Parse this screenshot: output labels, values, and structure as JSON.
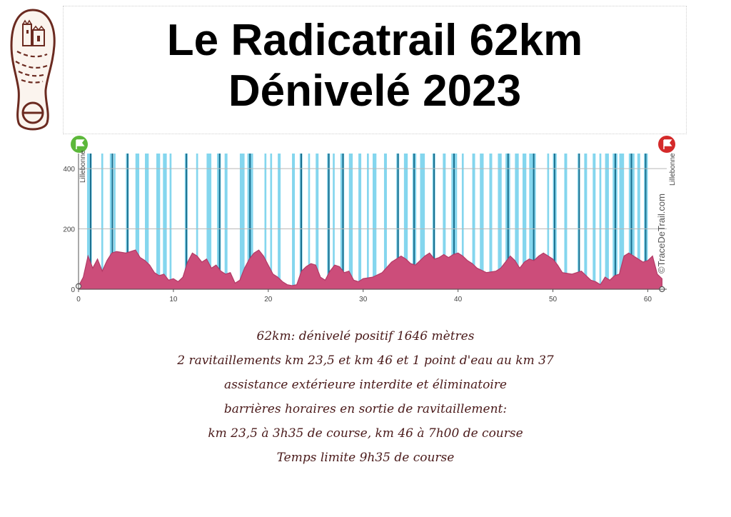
{
  "title": {
    "line1": "Le Radicatrail 62km",
    "line2": "Dénivelé 2023"
  },
  "info_lines": [
    "62km: dénivelé positif 1646 mètres",
    "2 ravitaillements km 23,5 et km 46 et 1 point d'eau au km 37",
    "assistance extérieure interdite et éliminatoire",
    "barrières horaires en sortie de ravitaillement:",
    "km 23,5 à 3h35 de course, km 46 à 7h00 de course",
    "Temps limite 9h35 de course"
  ],
  "colors": {
    "profile_fill": "#cc4d7a",
    "profile_stroke": "#b23a66",
    "forest_band": "#5bc8e8",
    "forest_band_dark": "#1b6f8e",
    "start_flag": "#5cb83a",
    "end_flag": "#d42a2a",
    "info_text": "#4a1a1a",
    "logo": "#6b2a20"
  },
  "icons": {
    "logo": "shoe-print-castle-logo-icon",
    "start": "green-start-flag-icon",
    "end": "red-finish-flag-icon"
  },
  "chart_data": {
    "type": "area",
    "xlabel": "",
    "ylabel": "",
    "xlim": [
      0,
      62
    ],
    "ylim": [
      0,
      450
    ],
    "x_ticks": [
      0,
      10,
      20,
      30,
      40,
      50,
      60
    ],
    "y_ticks": [
      0,
      200,
      400
    ],
    "grid": true,
    "start_label": "Lillebonne",
    "end_label": "Lillebonne",
    "watermark": "©TraceDeTrail.com",
    "series": [
      {
        "x": [
          0,
          0.5,
          1,
          1.5,
          2,
          2.5,
          3,
          3.5,
          4,
          5,
          6,
          6.5,
          7,
          7.5,
          8,
          8.5,
          9,
          9.5,
          10,
          10.5,
          11,
          11.5,
          12,
          12.5,
          13,
          13.5,
          14,
          14.5,
          15,
          15.5,
          16,
          16.5,
          17,
          17.5,
          18,
          18.5,
          19,
          19.5,
          20,
          20.5,
          21,
          21.5,
          22,
          22.5,
          23,
          23.5,
          24,
          24.5,
          25,
          25.5,
          26,
          26.5,
          27,
          27.5,
          28,
          28.5,
          29,
          29.5,
          30,
          31,
          32,
          33,
          34,
          34.5,
          35,
          35.5,
          36,
          36.5,
          37,
          37.5,
          38,
          38.5,
          39,
          39.5,
          40,
          40.5,
          41,
          41.5,
          42,
          43,
          44,
          44.5,
          45,
          45.5,
          46,
          46.5,
          47,
          47.5,
          48,
          48.5,
          49,
          49.5,
          50,
          50.5,
          51,
          52,
          53,
          53.5,
          54,
          54.5,
          55,
          55.5,
          56,
          56.5,
          57,
          57.5,
          58,
          58.5,
          59,
          59.5,
          60,
          60.5,
          61,
          61.5
        ],
        "y": [
          10,
          40,
          110,
          70,
          100,
          60,
          95,
          120,
          125,
          120,
          130,
          105,
          95,
          80,
          55,
          45,
          50,
          30,
          35,
          25,
          40,
          90,
          120,
          110,
          90,
          100,
          70,
          80,
          60,
          50,
          55,
          20,
          30,
          70,
          100,
          120,
          130,
          110,
          80,
          50,
          40,
          25,
          15,
          12,
          15,
          60,
          75,
          85,
          80,
          40,
          30,
          60,
          80,
          75,
          55,
          60,
          30,
          25,
          35,
          40,
          55,
          90,
          110,
          100,
          85,
          80,
          95,
          110,
          120,
          100,
          105,
          115,
          105,
          115,
          120,
          110,
          95,
          85,
          70,
          55,
          60,
          70,
          90,
          110,
          95,
          70,
          90,
          100,
          95,
          110,
          120,
          110,
          100,
          80,
          55,
          50,
          60,
          45,
          30,
          25,
          15,
          40,
          30,
          45,
          50,
          110,
          120,
          110,
          100,
          90,
          95,
          110,
          50,
          35
        ]
      }
    ],
    "forest_bands": [
      [
        0.9,
        1.4
      ],
      [
        2.4,
        2.6
      ],
      [
        3.3,
        3.5
      ],
      [
        3.7,
        3.9
      ],
      [
        5.0,
        5.3
      ],
      [
        6.0,
        6.4
      ],
      [
        7.0,
        7.4
      ],
      [
        8.2,
        8.6
      ],
      [
        8.9,
        9.3
      ],
      [
        9.6,
        9.8
      ],
      [
        11.2,
        11.5
      ],
      [
        12.4,
        12.6
      ],
      [
        13.5,
        14.0
      ],
      [
        14.6,
        15.0
      ],
      [
        15.4,
        15.7
      ],
      [
        17.0,
        17.5
      ],
      [
        17.8,
        18.4
      ],
      [
        19.6,
        19.8
      ],
      [
        20.2,
        20.4
      ],
      [
        21.0,
        21.3
      ],
      [
        22.5,
        22.8
      ],
      [
        23.3,
        23.6
      ],
      [
        24.2,
        24.4
      ],
      [
        25.0,
        25.3
      ],
      [
        26.2,
        26.5
      ],
      [
        26.8,
        27.0
      ],
      [
        27.6,
        28.0
      ],
      [
        28.5,
        28.9
      ],
      [
        29.5,
        29.8
      ],
      [
        30.4,
        30.6
      ],
      [
        31.0,
        31.4
      ],
      [
        32.2,
        32.5
      ],
      [
        33.5,
        33.8
      ],
      [
        34.3,
        34.7
      ],
      [
        35.2,
        35.6
      ],
      [
        36.0,
        36.5
      ],
      [
        37.3,
        37.6
      ],
      [
        38.4,
        38.7
      ],
      [
        39.3,
        39.9
      ],
      [
        40.4,
        40.6
      ],
      [
        41.5,
        41.8
      ],
      [
        42.3,
        42.7
      ],
      [
        43.3,
        43.6
      ],
      [
        44.2,
        44.6
      ],
      [
        45.0,
        45.5
      ],
      [
        46.0,
        46.4
      ],
      [
        46.8,
        47.2
      ],
      [
        47.5,
        48.2
      ],
      [
        49.4,
        49.6
      ],
      [
        50.0,
        50.4
      ],
      [
        51.2,
        51.5
      ],
      [
        52.6,
        52.8
      ],
      [
        53.3,
        53.6
      ],
      [
        54.2,
        54.5
      ],
      [
        54.9,
        55.1
      ],
      [
        55.5,
        55.9
      ],
      [
        56.3,
        56.8
      ],
      [
        57.0,
        57.5
      ],
      [
        58.0,
        58.6
      ],
      [
        58.9,
        59.2
      ],
      [
        59.6,
        60.0
      ]
    ],
    "forest_dark_lines": [
      1.2,
      3.5,
      5.1,
      11.3,
      14.8,
      18.0,
      23.4,
      26.3,
      27.8,
      33.6,
      35.3,
      37.4,
      39.5,
      45.2,
      47.9,
      50.1,
      52.7,
      56.5,
      58.2,
      59.7
    ]
  }
}
